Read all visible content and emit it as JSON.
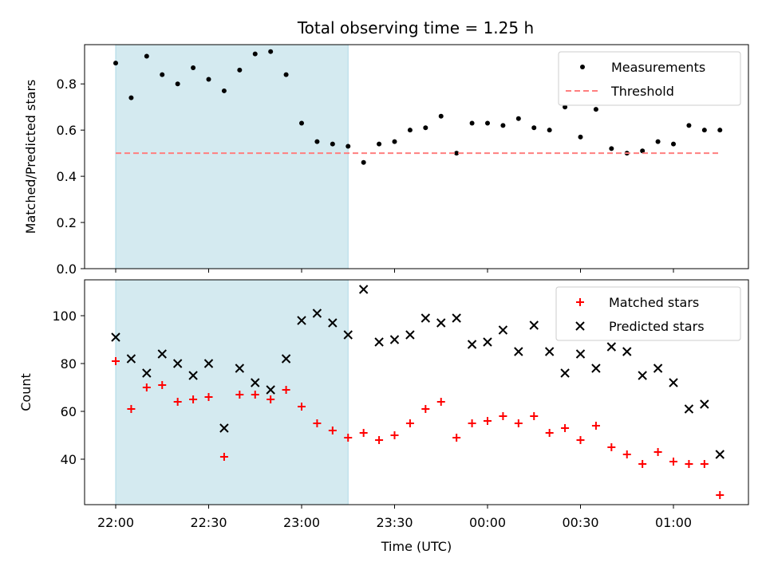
{
  "chart_data": [
    {
      "type": "scatter",
      "title": "Total observing time = 1.25 h",
      "xlabel": "",
      "ylabel": "Matched/Predicted stars",
      "ylim": [
        0,
        0.97
      ],
      "yticks": [
        "0.0",
        "0.2",
        "0.4",
        "0.6",
        "0.8"
      ],
      "ytick_values": [
        0,
        0.2,
        0.4,
        0.6,
        0.8
      ],
      "highlight_span": [
        "22:00",
        "23:15"
      ],
      "highlight_color": "#d4eaf0",
      "legend_position": "upper right",
      "series": [
        {
          "name": "Measurements",
          "color": "#000000",
          "marker": "dot",
          "x": [
            "22:00",
            "22:05",
            "22:10",
            "22:15",
            "22:20",
            "22:25",
            "22:30",
            "22:35",
            "22:40",
            "22:45",
            "22:50",
            "22:55",
            "23:00",
            "23:05",
            "23:10",
            "23:15",
            "23:20",
            "23:25",
            "23:30",
            "23:35",
            "23:40",
            "23:45",
            "23:50",
            "23:55",
            "00:00",
            "00:05",
            "00:10",
            "00:15",
            "00:20",
            "00:25",
            "00:30",
            "00:35",
            "00:40",
            "00:45",
            "00:50",
            "00:55",
            "01:00",
            "01:05",
            "01:10",
            "01:15"
          ],
          "values": [
            0.89,
            0.74,
            0.92,
            0.84,
            0.8,
            0.87,
            0.82,
            0.77,
            0.86,
            0.93,
            0.94,
            0.84,
            0.63,
            0.55,
            0.54,
            0.53,
            0.46,
            0.54,
            0.55,
            0.6,
            0.61,
            0.66,
            0.5,
            0.63,
            0.63,
            0.62,
            0.65,
            0.61,
            0.6,
            0.7,
            0.57,
            0.69,
            0.52,
            0.5,
            0.51,
            0.55,
            0.54,
            0.62,
            0.6,
            0.6
          ]
        },
        {
          "name": "Threshold",
          "color": "#ff7f7f",
          "style": "dashed",
          "x": [
            "22:00",
            "01:15"
          ],
          "values": [
            0.5,
            0.5
          ]
        }
      ]
    },
    {
      "type": "scatter",
      "xlabel": "Time (UTC)",
      "ylabel": "Count",
      "ylim": [
        21,
        115
      ],
      "yticks": [
        "40",
        "60",
        "80",
        "100"
      ],
      "ytick_values": [
        40,
        60,
        80,
        100
      ],
      "xticks": [
        "22:00",
        "22:30",
        "23:00",
        "23:30",
        "00:00",
        "00:30",
        "01:00"
      ],
      "highlight_span": [
        "22:00",
        "23:15"
      ],
      "highlight_color": "#d4eaf0",
      "legend_position": "upper right",
      "series": [
        {
          "name": "Matched stars",
          "color": "#ff0000",
          "marker": "plus",
          "x": [
            "22:00",
            "22:05",
            "22:10",
            "22:15",
            "22:20",
            "22:25",
            "22:30",
            "22:35",
            "22:40",
            "22:45",
            "22:50",
            "22:55",
            "23:00",
            "23:05",
            "23:10",
            "23:15",
            "23:20",
            "23:25",
            "23:30",
            "23:35",
            "23:40",
            "23:45",
            "23:50",
            "23:55",
            "00:00",
            "00:05",
            "00:10",
            "00:15",
            "00:20",
            "00:25",
            "00:30",
            "00:35",
            "00:40",
            "00:45",
            "00:50",
            "00:55",
            "01:00",
            "01:05",
            "01:10",
            "01:15"
          ],
          "values": [
            81,
            61,
            70,
            71,
            64,
            65,
            66,
            41,
            67,
            67,
            65,
            69,
            62,
            55,
            52,
            49,
            51,
            48,
            50,
            55,
            61,
            64,
            49,
            55,
            56,
            58,
            55,
            58,
            51,
            53,
            48,
            54,
            45,
            42,
            38,
            43,
            39,
            38,
            38,
            25
          ]
        },
        {
          "name": "Predicted stars",
          "color": "#000000",
          "marker": "x",
          "x": [
            "22:00",
            "22:05",
            "22:10",
            "22:15",
            "22:20",
            "22:25",
            "22:30",
            "22:35",
            "22:40",
            "22:45",
            "22:50",
            "22:55",
            "23:00",
            "23:05",
            "23:10",
            "23:15",
            "23:20",
            "23:25",
            "23:30",
            "23:35",
            "23:40",
            "23:45",
            "23:50",
            "23:55",
            "00:00",
            "00:05",
            "00:10",
            "00:15",
            "00:20",
            "00:25",
            "00:30",
            "00:35",
            "00:40",
            "00:45",
            "00:50",
            "00:55",
            "01:00",
            "01:05",
            "01:10",
            "01:15"
          ],
          "values": [
            91,
            82,
            76,
            84,
            80,
            75,
            80,
            53,
            78,
            72,
            69,
            82,
            98,
            101,
            97,
            92,
            111,
            89,
            90,
            92,
            99,
            97,
            99,
            88,
            89,
            94,
            85,
            96,
            85,
            76,
            84,
            78,
            87,
            85,
            75,
            78,
            72,
            61,
            63,
            42
          ]
        }
      ]
    }
  ]
}
